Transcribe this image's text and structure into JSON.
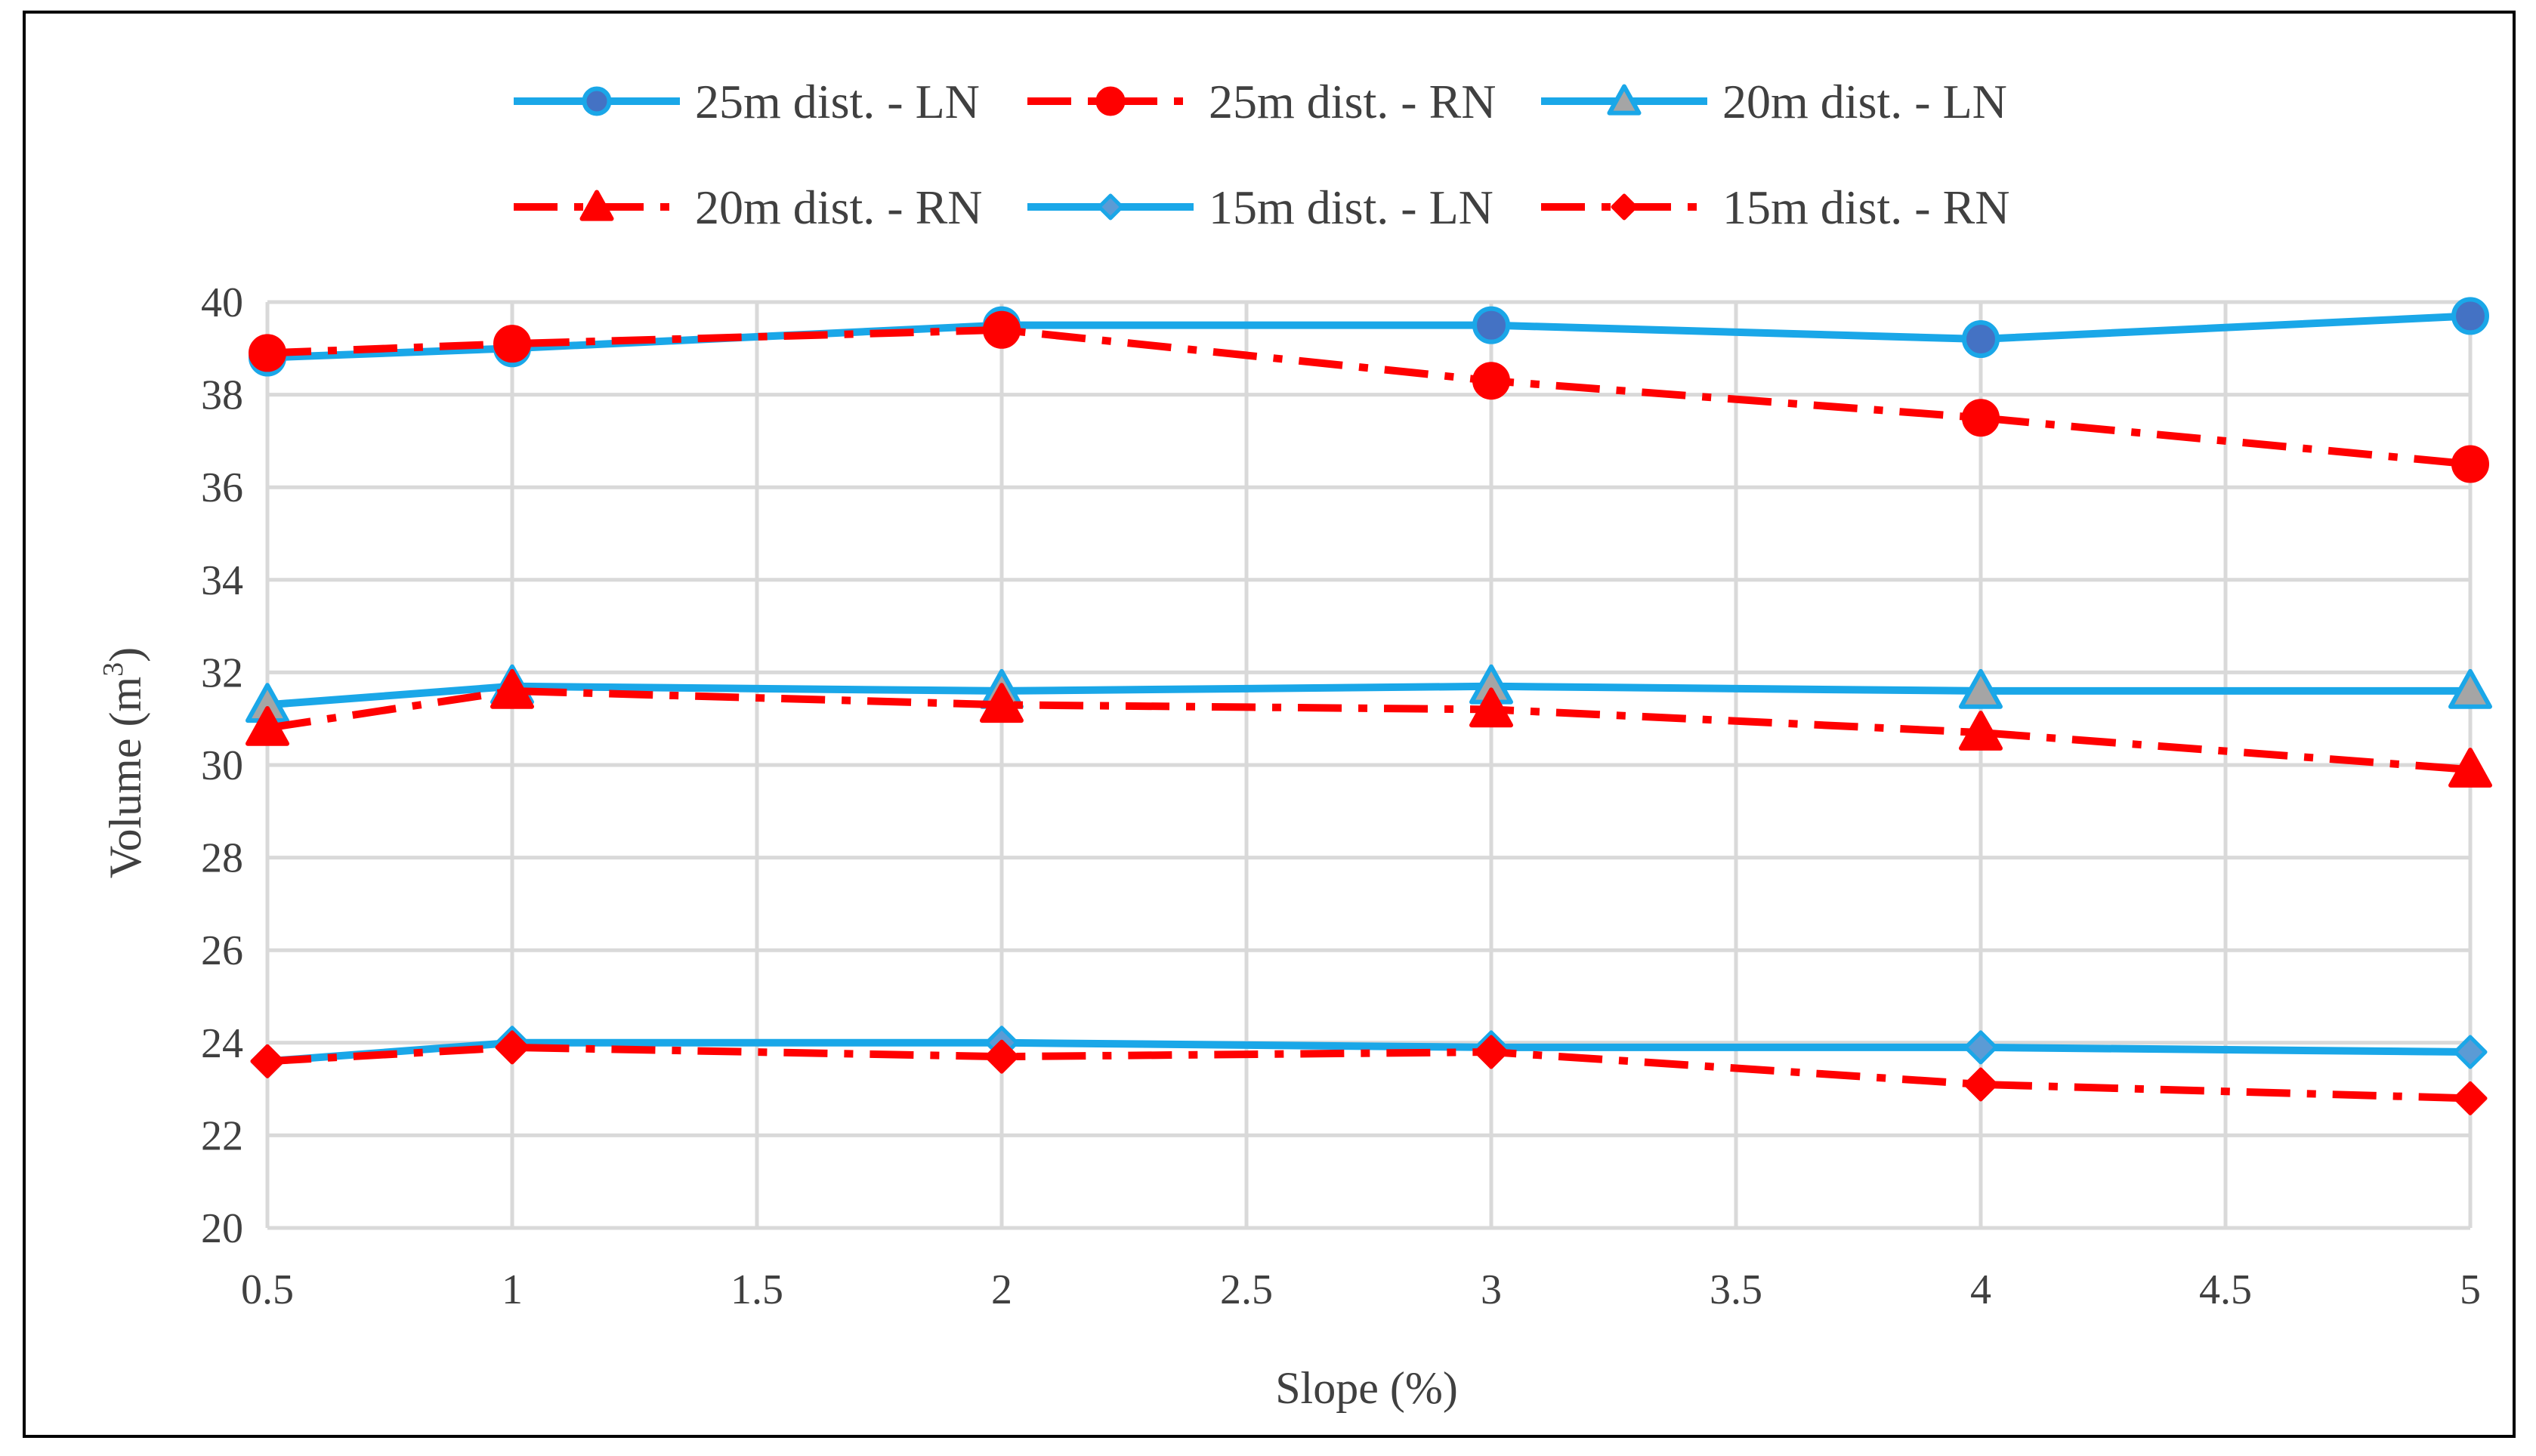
{
  "chart_data": {
    "type": "line",
    "title": "",
    "xlabel": "Slope (%)",
    "ylabel": "Volume (m",
    "ylabel_superscript": "3",
    "ylabel_suffix": ")",
    "xlim": [
      0.5,
      5
    ],
    "ylim": [
      20,
      40
    ],
    "x_ticks": [
      0.5,
      1,
      1.5,
      2,
      2.5,
      3,
      3.5,
      4,
      4.5,
      5
    ],
    "x_tick_labels": [
      "0.5",
      "1",
      "1.5",
      "2",
      "2.5",
      "3",
      "3.5",
      "4",
      "4.5",
      "5"
    ],
    "y_ticks": [
      20,
      22,
      24,
      26,
      28,
      30,
      32,
      34,
      36,
      38,
      40
    ],
    "y_tick_labels": [
      "20",
      "22",
      "24",
      "26",
      "28",
      "30",
      "32",
      "34",
      "36",
      "38",
      "40"
    ],
    "grid": true,
    "legend_position": "top",
    "x": [
      0.5,
      1,
      2,
      3,
      4,
      5
    ],
    "series": [
      {
        "name": "25m dist. - LN",
        "values": [
          38.8,
          39.0,
          39.5,
          39.5,
          39.2,
          39.7
        ],
        "color": "#1aa7e8",
        "marker_fill": "#4472c4",
        "marker": "circle",
        "dash": "solid"
      },
      {
        "name": "25m dist. - RN",
        "values": [
          38.9,
          39.1,
          39.4,
          38.3,
          37.5,
          36.5
        ],
        "color": "#ff0000",
        "marker_fill": "#ff0000",
        "marker": "circle",
        "dash": "dashdot"
      },
      {
        "name": "20m dist. - LN",
        "values": [
          31.3,
          31.7,
          31.6,
          31.7,
          31.6,
          31.6
        ],
        "color": "#1aa7e8",
        "marker_fill": "#a5a5a5",
        "marker": "triangle",
        "dash": "solid"
      },
      {
        "name": "20m dist. - RN",
        "values": [
          30.8,
          31.6,
          31.3,
          31.2,
          30.7,
          29.9
        ],
        "color": "#ff0000",
        "marker_fill": "#ff0000",
        "marker": "triangle",
        "dash": "dashdot"
      },
      {
        "name": "15m dist. - LN",
        "values": [
          23.6,
          24.0,
          24.0,
          23.9,
          23.9,
          23.8
        ],
        "color": "#1aa7e8",
        "marker_fill": "#5b9bd5",
        "marker": "diamond",
        "dash": "solid"
      },
      {
        "name": "15m dist. - RN",
        "values": [
          23.6,
          23.9,
          23.7,
          23.8,
          23.1,
          22.8
        ],
        "color": "#ff0000",
        "marker_fill": "#ff0000",
        "marker": "diamond",
        "dash": "dashdot"
      }
    ]
  }
}
